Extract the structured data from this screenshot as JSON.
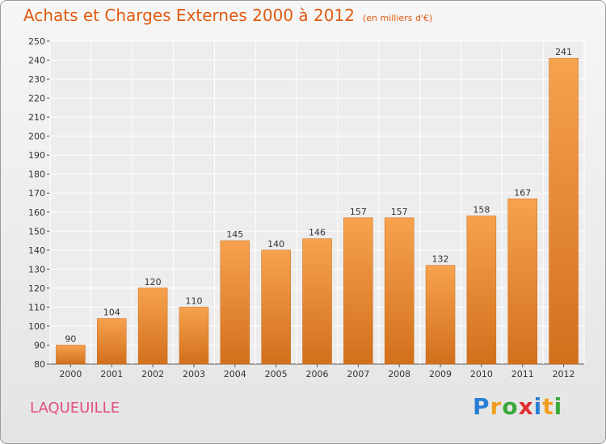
{
  "header": {
    "title": "Achats et Charges Externes 2000 à 2012",
    "unit": "(en milliers d'€)"
  },
  "footer": {
    "place": "LAQUEUILLE",
    "logo": [
      "P",
      "r",
      "o",
      "x",
      "i",
      "t",
      "i"
    ]
  },
  "colors": {
    "title": "#e05a10",
    "bar_light": "#f7a24e",
    "bar_dark": "#d2701c",
    "place": "#e0507a"
  },
  "chart_data": {
    "type": "bar",
    "categories": [
      "2000",
      "2001",
      "2002",
      "2003",
      "2004",
      "2005",
      "2006",
      "2007",
      "2008",
      "2009",
      "2010",
      "2011",
      "2012"
    ],
    "values": [
      90,
      104,
      120,
      110,
      145,
      140,
      146,
      157,
      157,
      132,
      158,
      167,
      241
    ],
    "title": "Achats et Charges Externes 2000 à 2012",
    "ylim": [
      80,
      250
    ],
    "yticks": [
      80,
      90,
      100,
      110,
      120,
      130,
      140,
      150,
      160,
      170,
      180,
      190,
      200,
      210,
      220,
      230,
      240,
      250
    ],
    "grid": true,
    "legend": "none"
  }
}
